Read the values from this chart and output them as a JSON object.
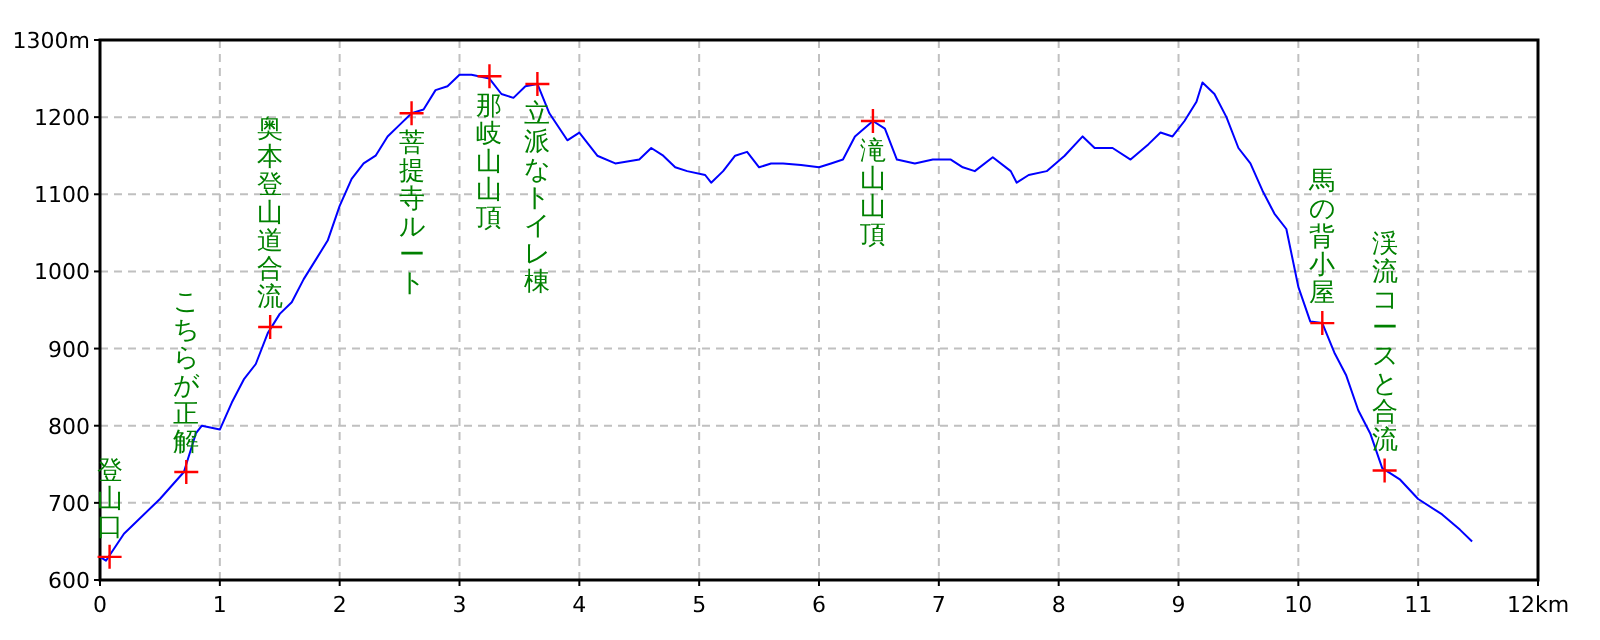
{
  "chart_data": {
    "type": "line",
    "xlim": [
      0,
      12
    ],
    "ylim": [
      600,
      1300
    ],
    "xticks": [
      0,
      1,
      2,
      3,
      4,
      5,
      6,
      7,
      8,
      9,
      10,
      11,
      {
        "value": 12,
        "label": "12km"
      }
    ],
    "yticks": [
      600,
      700,
      800,
      900,
      1000,
      1100,
      1200,
      {
        "value": 1300,
        "label": "1300m"
      }
    ],
    "grid": true,
    "series": [
      {
        "color": "#0000ff",
        "x": [
          0,
          0.05,
          0.2,
          0.5,
          0.7,
          0.8,
          0.85,
          1.0,
          1.1,
          1.2,
          1.3,
          1.4,
          1.5,
          1.6,
          1.7,
          1.8,
          1.9,
          2.0,
          2.1,
          2.2,
          2.3,
          2.4,
          2.5,
          2.6,
          2.7,
          2.8,
          2.9,
          3.0,
          3.1,
          3.25,
          3.35,
          3.45,
          3.55,
          3.65,
          3.75,
          3.9,
          4.0,
          4.15,
          4.3,
          4.5,
          4.6,
          4.7,
          4.8,
          4.9,
          5.05,
          5.1,
          5.2,
          5.3,
          5.4,
          5.5,
          5.6,
          5.7,
          5.85,
          6.0,
          6.1,
          6.2,
          6.3,
          6.45,
          6.55,
          6.65,
          6.8,
          6.95,
          7.1,
          7.2,
          7.3,
          7.45,
          7.6,
          7.65,
          7.75,
          7.9,
          8.05,
          8.2,
          8.3,
          8.45,
          8.6,
          8.75,
          8.85,
          8.95,
          9.05,
          9.15,
          9.2,
          9.3,
          9.4,
          9.5,
          9.6,
          9.7,
          9.8,
          9.9,
          10.0,
          10.1,
          10.2,
          10.3,
          10.4,
          10.5,
          10.6,
          10.7,
          10.85,
          11.0,
          11.2,
          11.35,
          11.45
        ],
        "values": [
          630,
          625,
          660,
          705,
          740,
          790,
          800,
          795,
          830,
          860,
          880,
          920,
          945,
          960,
          990,
          1015,
          1040,
          1085,
          1120,
          1140,
          1150,
          1175,
          1190,
          1205,
          1210,
          1235,
          1240,
          1255,
          1255,
          1250,
          1230,
          1225,
          1240,
          1243,
          1205,
          1170,
          1180,
          1150,
          1140,
          1145,
          1160,
          1150,
          1135,
          1130,
          1125,
          1115,
          1130,
          1150,
          1155,
          1135,
          1140,
          1140,
          1138,
          1135,
          1140,
          1145,
          1175,
          1195,
          1185,
          1145,
          1140,
          1145,
          1145,
          1135,
          1130,
          1148,
          1130,
          1115,
          1125,
          1130,
          1150,
          1175,
          1160,
          1160,
          1145,
          1165,
          1180,
          1175,
          1195,
          1220,
          1245,
          1230,
          1200,
          1160,
          1140,
          1105,
          1075,
          1055,
          980,
          935,
          933,
          895,
          865,
          820,
          790,
          745,
          730,
          705,
          685,
          665,
          650
        ]
      },
      {
        "type": "scatter",
        "marker": "cross",
        "color": "#ff0000",
        "x": [
          0.08,
          0.72,
          1.42,
          2.6,
          3.25,
          3.65,
          6.45,
          10.2,
          10.72
        ],
        "values": [
          630,
          740,
          928,
          1205,
          1253,
          1243,
          1195,
          933,
          742
        ]
      }
    ],
    "annotations": [
      {
        "text": "登山口",
        "x": 0.08,
        "y": 630
      },
      {
        "text": "こちらが正解",
        "x": 0.72,
        "y": 740
      },
      {
        "text": "奥本登山道合流",
        "x": 1.42,
        "y": 928
      },
      {
        "text": "菩提寺ルート",
        "x": 2.6,
        "y": 1205
      },
      {
        "text": "那岐山山頂",
        "x": 3.25,
        "y": 1253
      },
      {
        "text": "立派なトイレ棟",
        "x": 3.65,
        "y": 1243
      },
      {
        "text": "滝山山頂",
        "x": 6.45,
        "y": 1195
      },
      {
        "text": "馬の背小屋",
        "x": 10.2,
        "y": 933
      },
      {
        "text": "渓流コースと合流",
        "x": 10.72,
        "y": 742
      }
    ]
  }
}
